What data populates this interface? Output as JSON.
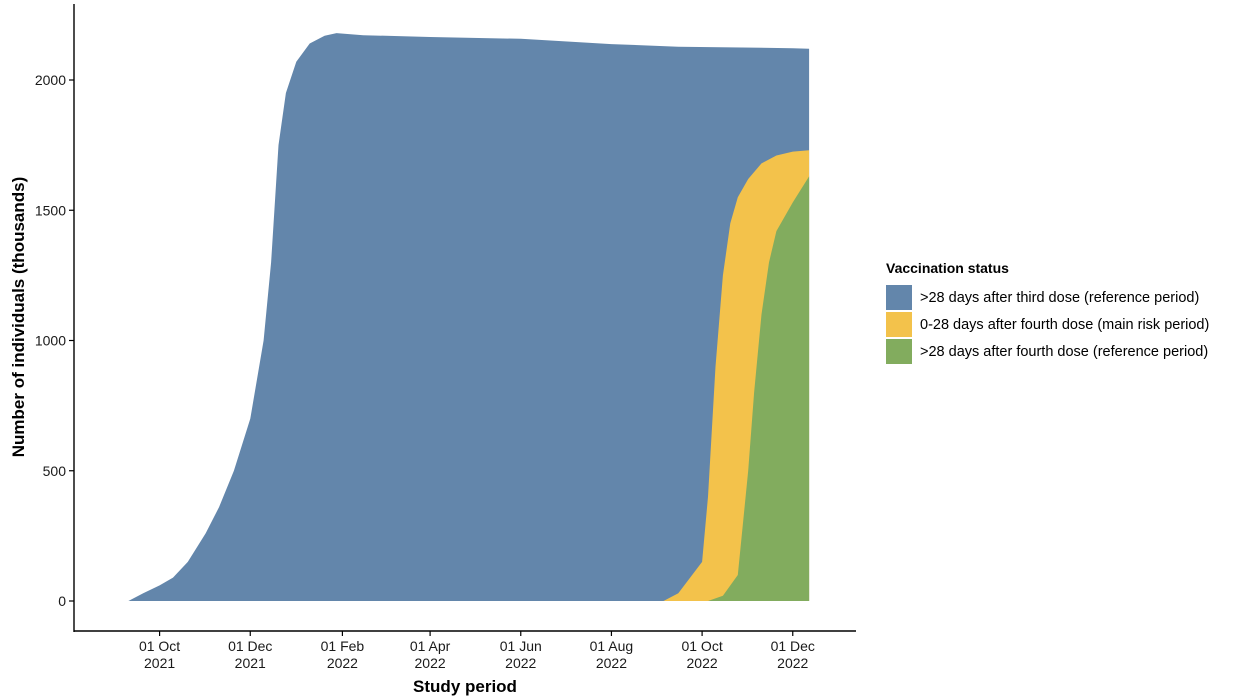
{
  "chart_data": {
    "type": "area",
    "stacked": true,
    "xlabel": "Study period",
    "ylabel": "Number of individuals (thousands)",
    "ylim": [
      0,
      2200
    ],
    "xlim": [
      "2021-09-01",
      "2022-12-20"
    ],
    "y_ticks": [
      0,
      500,
      1000,
      1500,
      2000
    ],
    "x_ticks": [
      {
        "date": "2021-10-01",
        "line1": "01 Oct",
        "line2": "2021"
      },
      {
        "date": "2021-12-01",
        "line1": "01 Dec",
        "line2": "2021"
      },
      {
        "date": "2022-02-01",
        "line1": "01 Feb",
        "line2": "2022"
      },
      {
        "date": "2022-04-01",
        "line1": "01 Apr",
        "line2": "2022"
      },
      {
        "date": "2022-06-01",
        "line1": "01 Jun",
        "line2": "2022"
      },
      {
        "date": "2022-08-01",
        "line1": "01 Aug",
        "line2": "2022"
      },
      {
        "date": "2022-10-01",
        "line1": "01 Oct",
        "line2": "2022"
      },
      {
        "date": "2022-12-01",
        "line1": "01 Dec",
        "line2": "2022"
      }
    ],
    "grid": false,
    "legend_position": "right",
    "legend_title": "Vaccination status",
    "series": [
      {
        "name": ">28 days after third dose (reference period)",
        "color": "#6386ab",
        "points": [
          [
            "2021-09-10",
            0
          ],
          [
            "2021-09-20",
            30
          ],
          [
            "2021-10-01",
            60
          ],
          [
            "2021-10-10",
            90
          ],
          [
            "2021-10-20",
            150
          ],
          [
            "2021-11-01",
            260
          ],
          [
            "2021-11-10",
            360
          ],
          [
            "2021-11-20",
            500
          ],
          [
            "2021-12-01",
            700
          ],
          [
            "2021-12-10",
            1000
          ],
          [
            "2021-12-15",
            1300
          ],
          [
            "2021-12-20",
            1750
          ],
          [
            "2021-12-25",
            1950
          ],
          [
            "2022-01-01",
            2070
          ],
          [
            "2022-01-10",
            2140
          ],
          [
            "2022-01-20",
            2170
          ],
          [
            "2022-01-28",
            2180
          ],
          [
            "2022-02-15",
            2172
          ],
          [
            "2022-04-01",
            2165
          ],
          [
            "2022-06-01",
            2158
          ],
          [
            "2022-08-01",
            2138
          ],
          [
            "2022-09-15",
            2128
          ],
          [
            "2022-12-01",
            2122
          ],
          [
            "2022-12-12",
            2120
          ]
        ]
      },
      {
        "name": "0-28 days after fourth dose (main risk period)",
        "color": "#f3c24b",
        "points": [
          [
            "2022-09-05",
            0
          ],
          [
            "2022-09-15",
            30
          ],
          [
            "2022-10-01",
            150
          ],
          [
            "2022-10-05",
            400
          ],
          [
            "2022-10-10",
            900
          ],
          [
            "2022-10-15",
            1250
          ],
          [
            "2022-10-20",
            1450
          ],
          [
            "2022-10-25",
            1550
          ],
          [
            "2022-11-01",
            1620
          ],
          [
            "2022-11-10",
            1680
          ],
          [
            "2022-11-20",
            1710
          ],
          [
            "2022-12-01",
            1725
          ],
          [
            "2022-12-12",
            1730
          ]
        ]
      },
      {
        "name": ">28 days after fourth dose (reference period)",
        "color": "#82ac5e",
        "points": [
          [
            "2022-10-05",
            0
          ],
          [
            "2022-10-15",
            20
          ],
          [
            "2022-10-25",
            100
          ],
          [
            "2022-11-01",
            500
          ],
          [
            "2022-11-05",
            800
          ],
          [
            "2022-11-10",
            1100
          ],
          [
            "2022-11-15",
            1300
          ],
          [
            "2022-11-20",
            1420
          ],
          [
            "2022-12-01",
            1530
          ],
          [
            "2022-12-12",
            1630
          ]
        ]
      }
    ]
  }
}
